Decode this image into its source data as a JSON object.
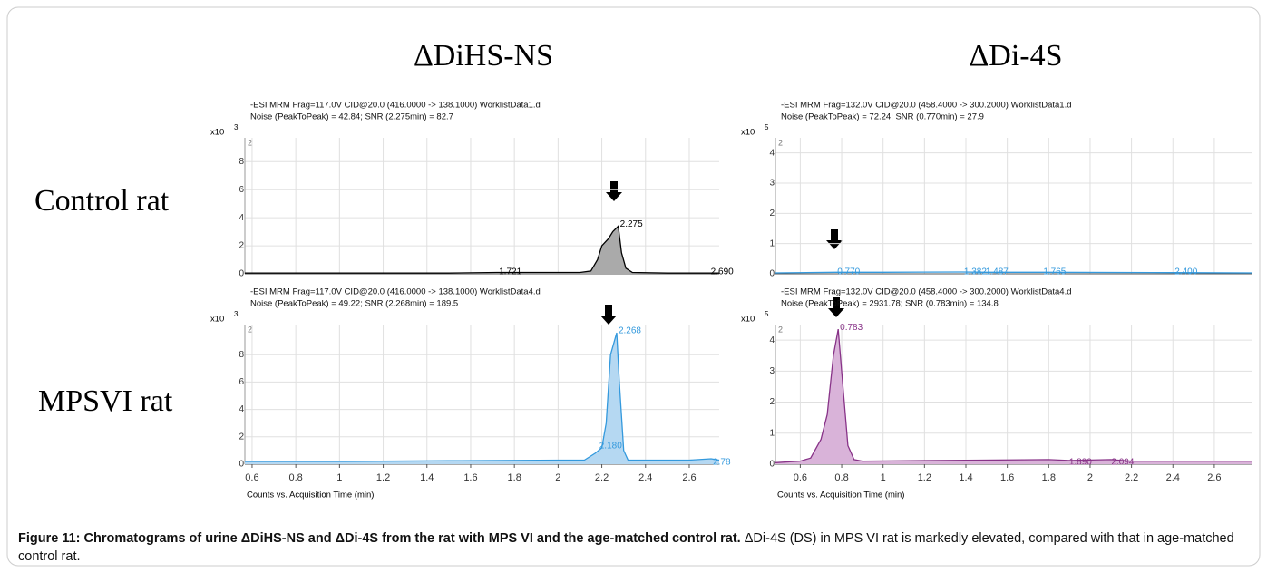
{
  "figure": {
    "column_titles": [
      "ΔDiHS-NS",
      "ΔDi-4S"
    ],
    "row_labels": [
      "Control rat",
      "MPSVI rat"
    ],
    "caption_bold": "Figure 11: Chromatograms of urine ΔDiHS-NS and ΔDi-4S from the rat with MPS VI and the age-matched control rat.",
    "caption_text": " ΔDi-4S (DS) in MPS VI rat is markedly elevated, compared with that in age-matched control rat."
  },
  "chart_data": [
    {
      "type": "line",
      "title": [
        "-ESI MRM Frag=117.0V CID@20.0 (416.0000 -> 138.1000) WorklistData1.d",
        "Noise (PeakToPeak) = 42.84; SNR (2.275min) = 82.7"
      ],
      "y_multiplier": "x10",
      "y_exponent": "3",
      "y_top_label": "2",
      "xlim": [
        0.567,
        2.737
      ],
      "ylim": [
        0,
        9.7
      ],
      "xtick_labels": false,
      "xticks": [
        0.6,
        0.8,
        1,
        1.2,
        1.4,
        1.6,
        1.8,
        2,
        2.2,
        2.4,
        2.6
      ],
      "yticks": [
        0,
        2,
        4,
        6,
        8
      ],
      "grid": true,
      "series": [
        {
          "color": "#000000",
          "fill": "#aaaaaa",
          "x": [
            0.567,
            1.5,
            1.72,
            2.1,
            2.15,
            2.18,
            2.2,
            2.23,
            2.25,
            2.275,
            2.29,
            2.31,
            2.34,
            2.5,
            2.737
          ],
          "values": [
            0.05,
            0.05,
            0.1,
            0.1,
            0.2,
            1.0,
            2.0,
            2.5,
            3.0,
            3.4,
            1.5,
            0.4,
            0.1,
            0.05,
            0.05
          ]
        }
      ],
      "peak_labels": [
        {
          "label": "2.275",
          "x": 2.275,
          "y": 3.4
        },
        {
          "label": "1.721",
          "x": 1.721,
          "y": 0
        },
        {
          "label": "2.690",
          "x": 2.69,
          "y": 0
        }
      ],
      "peak_label_color": "#000000"
    },
    {
      "type": "line",
      "title": [
        "-ESI MRM Frag=132.0V CID@20.0 (458.4000 -> 300.2000) WorklistData1.d",
        "Noise (PeakToPeak) = 72.24; SNR (0.770min) = 27.9"
      ],
      "y_multiplier": "x10",
      "y_exponent": "5",
      "y_top_label": "2",
      "xlim": [
        0.48,
        2.78
      ],
      "ylim": [
        0,
        4.5
      ],
      "xtick_labels": false,
      "xticks": [
        0.6,
        0.8,
        1,
        1.2,
        1.4,
        1.6,
        1.8,
        2,
        2.2,
        2.4,
        2.6
      ],
      "yticks": [
        0,
        1,
        2,
        3,
        4
      ],
      "grid": true,
      "series": [
        {
          "color": "#3399dd",
          "x": [
            0.48,
            0.77,
            1.0,
            1.38,
            1.49,
            1.77,
            2.4,
            2.78
          ],
          "values": [
            0.03,
            0.05,
            0.05,
            0.06,
            0.05,
            0.05,
            0.04,
            0.03
          ]
        }
      ],
      "peak_labels": [
        {
          "label": "0.770",
          "x": 0.77,
          "y": 0
        },
        {
          "label": "1.382",
          "x": 1.382,
          "y": 0
        },
        {
          "label": "1.487",
          "x": 1.487,
          "y": 0
        },
        {
          "label": "1.765",
          "x": 1.765,
          "y": 0
        },
        {
          "label": "2.400",
          "x": 2.4,
          "y": 0
        }
      ],
      "peak_label_color": "#3399dd"
    },
    {
      "type": "line",
      "title": [
        "-ESI MRM Frag=117.0V CID@20.0 (416.0000 -> 138.1000) WorklistData4.d",
        "Noise (PeakToPeak) = 49.22; SNR (2.268min) = 189.5"
      ],
      "y_multiplier": "x10",
      "y_exponent": "3",
      "y_top_label": "2",
      "xlim": [
        0.567,
        2.737
      ],
      "ylim": [
        0,
        10.2
      ],
      "xticks": [
        0.6,
        0.8,
        1,
        1.2,
        1.4,
        1.6,
        1.8,
        2,
        2.2,
        2.4,
        2.6
      ],
      "yticks": [
        0,
        2,
        4,
        6,
        8
      ],
      "grid": true,
      "xlabel": "Counts vs. Acquisition Time (min)",
      "series": [
        {
          "color": "#3399dd",
          "fill": "#b5d8f2",
          "x": [
            0.567,
            1.0,
            1.5,
            2.0,
            2.12,
            2.17,
            2.2,
            2.22,
            2.24,
            2.268,
            2.28,
            2.3,
            2.32,
            2.6,
            2.7,
            2.737
          ],
          "values": [
            0.2,
            0.2,
            0.25,
            0.3,
            0.3,
            0.8,
            1.2,
            3.0,
            8.0,
            9.6,
            6.0,
            1.0,
            0.3,
            0.3,
            0.4,
            0.3
          ]
        }
      ],
      "peak_labels": [
        {
          "label": "2.268",
          "x": 2.268,
          "y": 9.6
        },
        {
          "label": "2.180",
          "x": 2.18,
          "y": 1.2
        },
        {
          "label": "2.78",
          "x": 2.7,
          "y": 0
        }
      ],
      "peak_label_color": "#3399dd"
    },
    {
      "type": "line",
      "title": [
        "-ESI MRM Frag=132.0V CID@20.0 (458.4000 -> 300.2000) WorklistData4.d",
        "Noise (PeakToPeak) = 2931.78; SNR (0.783min) = 134.8"
      ],
      "y_multiplier": "x10",
      "y_exponent": "5",
      "y_top_label": "2",
      "xlim": [
        0.48,
        2.78
      ],
      "ylim": [
        0,
        4.5
      ],
      "xticks": [
        0.6,
        0.8,
        1,
        1.2,
        1.4,
        1.6,
        1.8,
        2,
        2.2,
        2.4,
        2.6
      ],
      "yticks": [
        0,
        1,
        2,
        3,
        4
      ],
      "grid": true,
      "xlabel": "Counts vs. Acquisition Time (min)",
      "series": [
        {
          "color": "#883388",
          "fill": "#d9b3d9",
          "x": [
            0.48,
            0.6,
            0.65,
            0.7,
            0.73,
            0.76,
            0.783,
            0.8,
            0.83,
            0.86,
            0.9,
            1.8,
            1.9,
            2.1,
            2.2,
            2.78
          ],
          "values": [
            0.05,
            0.1,
            0.2,
            0.8,
            1.6,
            3.5,
            4.35,
            3.0,
            0.6,
            0.15,
            0.1,
            0.15,
            0.12,
            0.15,
            0.1,
            0.1
          ]
        }
      ],
      "peak_labels": [
        {
          "label": "0.783",
          "x": 0.783,
          "y": 4.35
        },
        {
          "label": "1.890",
          "x": 1.89,
          "y": 0
        },
        {
          "label": "2.094",
          "x": 2.094,
          "y": 0
        }
      ],
      "peak_label_color": "#883388"
    }
  ]
}
